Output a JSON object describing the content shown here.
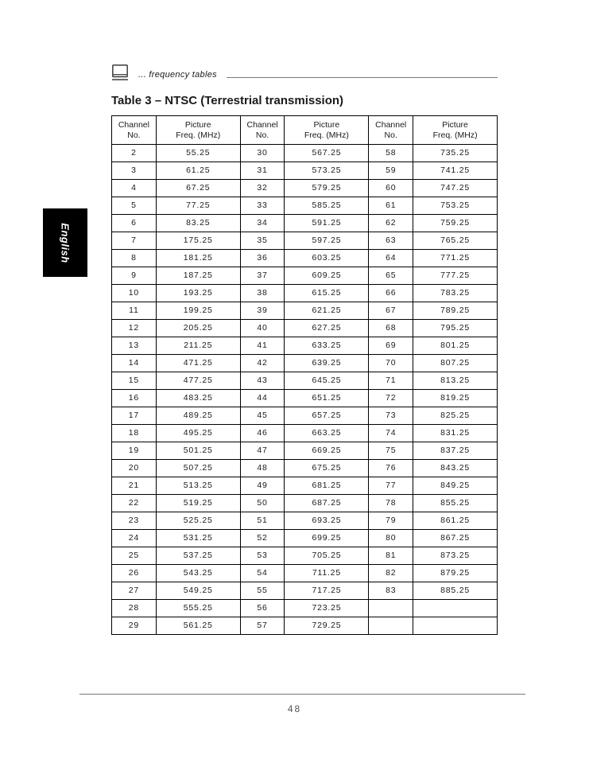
{
  "section_label": "... frequency tables",
  "title": "Table 3 – NTSC (Terrestrial transmission)",
  "side_tab": "English",
  "page_number": "48",
  "icon_stroke": "#3a3a3a",
  "headers": {
    "channel": "Channel\nNo.",
    "freq": "Picture\nFreq. (MHz)"
  },
  "table": {
    "type": "table",
    "border_color": "#000000",
    "text_color": "#1a1a1a",
    "fontsize": 10.5,
    "columns": [
      "Channel No.",
      "Picture Freq. (MHz)",
      "Channel No.",
      "Picture Freq. (MHz)",
      "Channel No.",
      "Picture Freq. (MHz)"
    ],
    "col_widths_pct": [
      11.5,
      21.8,
      11.5,
      21.8,
      11.5,
      21.8
    ],
    "rows": [
      [
        "2",
        "55.25",
        "30",
        "567.25",
        "58",
        "735.25"
      ],
      [
        "3",
        "61.25",
        "31",
        "573.25",
        "59",
        "741.25"
      ],
      [
        "4",
        "67.25",
        "32",
        "579.25",
        "60",
        "747.25"
      ],
      [
        "5",
        "77.25",
        "33",
        "585.25",
        "61",
        "753.25"
      ],
      [
        "6",
        "83.25",
        "34",
        "591.25",
        "62",
        "759.25"
      ],
      [
        "7",
        "175.25",
        "35",
        "597.25",
        "63",
        "765.25"
      ],
      [
        "8",
        "181.25",
        "36",
        "603.25",
        "64",
        "771.25"
      ],
      [
        "9",
        "187.25",
        "37",
        "609.25",
        "65",
        "777.25"
      ],
      [
        "10",
        "193.25",
        "38",
        "615.25",
        "66",
        "783.25"
      ],
      [
        "11",
        "199.25",
        "39",
        "621.25",
        "67",
        "789.25"
      ],
      [
        "12",
        "205.25",
        "40",
        "627.25",
        "68",
        "795.25"
      ],
      [
        "13",
        "211.25",
        "41",
        "633.25",
        "69",
        "801.25"
      ],
      [
        "14",
        "471.25",
        "42",
        "639.25",
        "70",
        "807.25"
      ],
      [
        "15",
        "477.25",
        "43",
        "645.25",
        "71",
        "813.25"
      ],
      [
        "16",
        "483.25",
        "44",
        "651.25",
        "72",
        "819.25"
      ],
      [
        "17",
        "489.25",
        "45",
        "657.25",
        "73",
        "825.25"
      ],
      [
        "18",
        "495.25",
        "46",
        "663.25",
        "74",
        "831.25"
      ],
      [
        "19",
        "501.25",
        "47",
        "669.25",
        "75",
        "837.25"
      ],
      [
        "20",
        "507.25",
        "48",
        "675.25",
        "76",
        "843.25"
      ],
      [
        "21",
        "513.25",
        "49",
        "681.25",
        "77",
        "849.25"
      ],
      [
        "22",
        "519.25",
        "50",
        "687.25",
        "78",
        "855.25"
      ],
      [
        "23",
        "525.25",
        "51",
        "693.25",
        "79",
        "861.25"
      ],
      [
        "24",
        "531.25",
        "52",
        "699.25",
        "80",
        "867.25"
      ],
      [
        "25",
        "537.25",
        "53",
        "705.25",
        "81",
        "873.25"
      ],
      [
        "26",
        "543.25",
        "54",
        "711.25",
        "82",
        "879.25"
      ],
      [
        "27",
        "549.25",
        "55",
        "717.25",
        "83",
        "885.25"
      ],
      [
        "28",
        "555.25",
        "56",
        "723.25",
        "",
        ""
      ],
      [
        "29",
        "561.25",
        "57",
        "729.25",
        "",
        ""
      ]
    ]
  }
}
